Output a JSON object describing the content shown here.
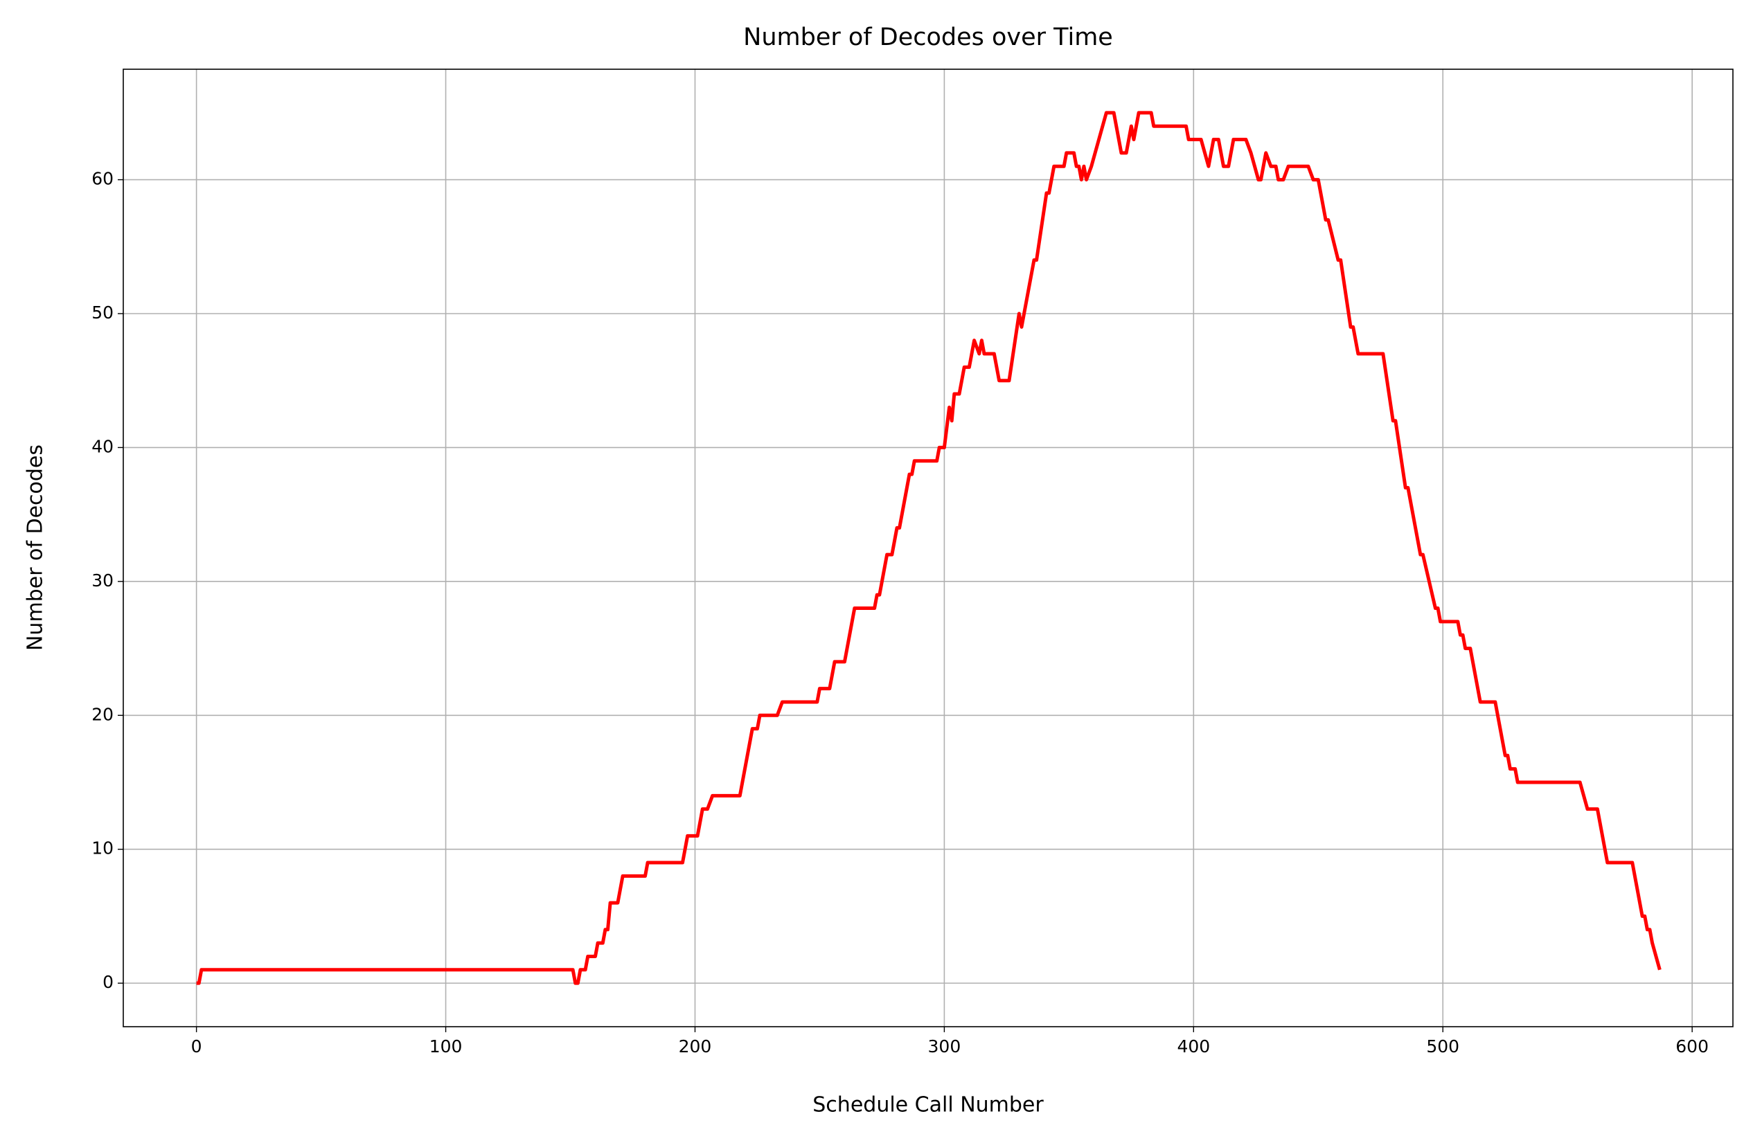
{
  "chart_data": {
    "type": "line",
    "title": "Number of Decodes over Time",
    "xlabel": "Schedule Call Number",
    "ylabel": "Number of Decodes",
    "x": [
      0,
      1,
      2,
      150,
      151,
      152,
      153,
      154,
      156,
      157,
      160,
      161,
      163,
      164,
      165,
      166,
      169,
      171,
      180,
      181,
      195,
      197,
      201,
      202,
      203,
      205,
      207,
      218,
      223,
      225,
      226,
      233,
      235,
      249,
      250,
      254,
      256,
      260,
      264,
      272,
      273,
      274,
      277,
      279,
      281,
      282,
      286,
      287,
      288,
      297,
      298,
      300,
      302,
      303,
      304,
      306,
      308,
      310,
      311,
      312,
      314,
      315,
      316,
      320,
      322,
      326,
      330,
      331,
      336,
      337,
      341,
      342,
      344,
      348,
      349,
      352,
      353,
      354,
      355,
      356,
      357,
      359,
      365,
      368,
      371,
      373,
      375,
      376,
      378,
      383,
      384,
      397,
      398,
      403,
      406,
      408,
      410,
      412,
      414,
      416,
      421,
      423,
      426,
      427,
      429,
      431,
      433,
      434,
      436,
      438,
      446,
      448,
      450,
      453,
      454,
      458,
      459,
      463,
      464,
      466,
      476,
      480,
      481,
      485,
      486,
      491,
      492,
      497,
      498,
      499,
      506,
      507,
      508,
      509,
      511,
      515,
      521,
      525,
      526,
      527,
      529,
      530,
      555,
      558,
      562,
      566,
      576,
      580,
      581,
      582,
      583,
      584,
      587
    ],
    "series": [
      {
        "name": "Number of Decodes",
        "color": "#ff0000",
        "values": [
          0,
          0,
          1,
          1,
          1,
          0,
          0,
          1,
          1,
          2,
          2,
          3,
          3,
          4,
          4,
          6,
          6,
          8,
          8,
          9,
          9,
          11,
          11,
          12,
          13,
          13,
          14,
          14,
          19,
          19,
          20,
          20,
          21,
          21,
          22,
          22,
          24,
          24,
          28,
          28,
          29,
          29,
          32,
          32,
          34,
          34,
          38,
          38,
          39,
          39,
          40,
          40,
          43,
          42,
          44,
          44,
          46,
          46,
          47,
          48,
          47,
          48,
          47,
          47,
          45,
          45,
          50,
          49,
          54,
          54,
          59,
          59,
          61,
          61,
          62,
          62,
          61,
          61,
          60,
          61,
          60,
          61,
          65,
          65,
          62,
          62,
          64,
          63,
          65,
          65,
          64,
          64,
          63,
          63,
          61,
          63,
          63,
          61,
          61,
          63,
          63,
          62,
          60,
          60,
          62,
          61,
          61,
          60,
          60,
          61,
          61,
          60,
          60,
          57,
          57,
          54,
          54,
          49,
          49,
          47,
          47,
          42,
          42,
          37,
          37,
          32,
          32,
          28,
          28,
          27,
          27,
          26,
          26,
          25,
          25,
          21,
          21,
          17,
          17,
          16,
          16,
          15,
          15,
          13,
          13,
          9,
          9,
          5,
          5,
          4,
          4,
          3,
          1
        ]
      }
    ],
    "xlim": [
      -29.35,
      616.35
    ],
    "ylim": [
      -3.25,
      68.25
    ],
    "xticks": [
      0,
      100,
      200,
      300,
      400,
      500,
      600
    ],
    "yticks": [
      0,
      10,
      20,
      30,
      40,
      50,
      60
    ],
    "grid": true
  }
}
